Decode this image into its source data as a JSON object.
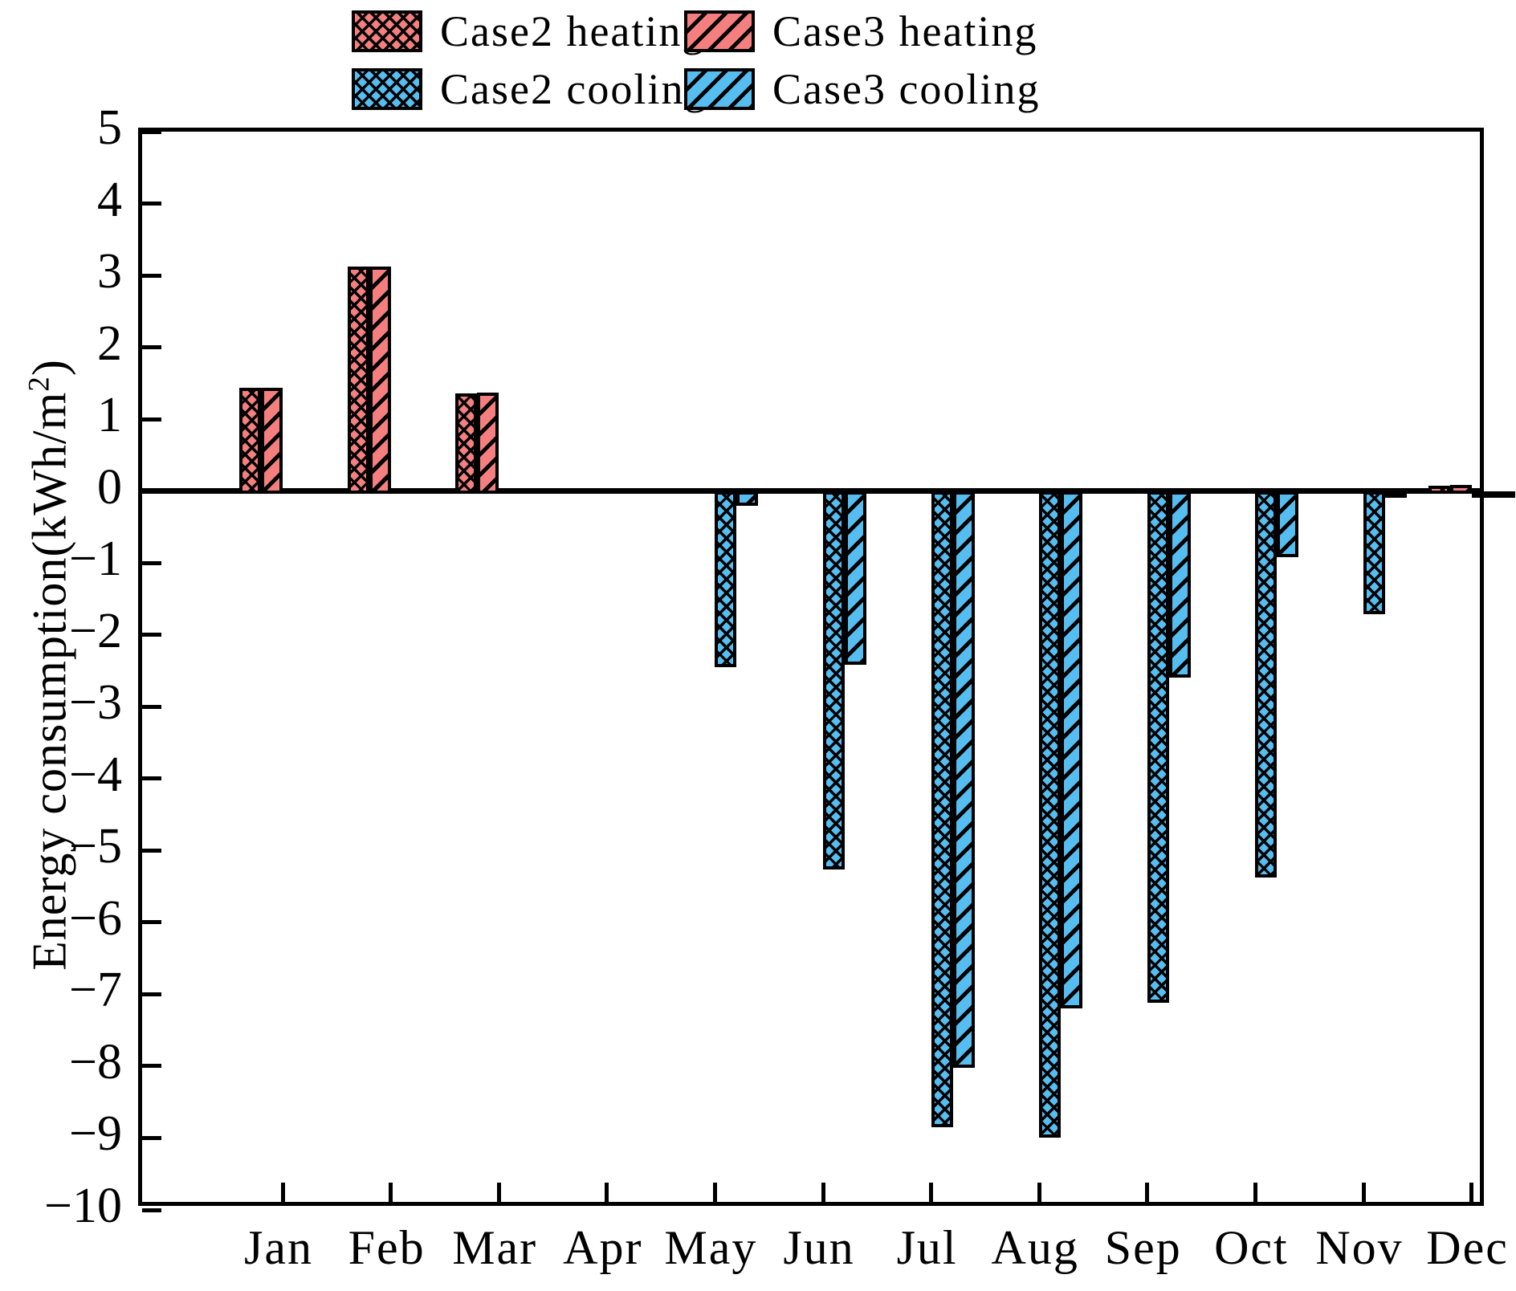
{
  "figure": {
    "background": "#ffffff",
    "axis_color": "#000000",
    "ylabel_prefix": "Energy consumption(kWh/m",
    "ylabel_sup": "2",
    "ylabel_suffix": ")"
  },
  "legend": {
    "position": "top-center",
    "items": [
      {
        "label": "Case2 heating",
        "color": "#F57F7F",
        "hatch": "cross"
      },
      {
        "label": "Case3 heating",
        "color": "#F57F7F",
        "hatch": "diag"
      },
      {
        "label": "Case2 cooling",
        "color": "#56BDF0",
        "hatch": "cross"
      },
      {
        "label": "Case3 cooling",
        "color": "#56BDF0",
        "hatch": "diag"
      }
    ]
  },
  "axes": {
    "y_tick_labels": [
      "5",
      "4",
      "3",
      "2",
      "1",
      "0",
      "−1",
      "−2",
      "−3",
      "−4",
      "−5",
      "−6",
      "−7",
      "−8",
      "−9",
      "−10"
    ],
    "y_tick_values": [
      5,
      4,
      3,
      2,
      1,
      0,
      -1,
      -2,
      -3,
      -4,
      -5,
      -6,
      -7,
      -8,
      -9,
      -10
    ],
    "x_tick_labels": [
      "Jan",
      "Feb",
      "Mar",
      "Apr",
      "May",
      "Jun",
      "Jul",
      "Aug",
      "Sep",
      "Oct",
      "Nov",
      "Dec"
    ]
  },
  "chart_data": {
    "type": "bar",
    "title": "",
    "xlabel": "",
    "ylabel": "Energy consumption(kWh/m²)",
    "ylim": [
      -10,
      5
    ],
    "grid": false,
    "legend_position": "top-center",
    "categories": [
      "Jan",
      "Feb",
      "Mar",
      "Apr",
      "May",
      "Jun",
      "Jul",
      "Aug",
      "Sep",
      "Oct",
      "Nov",
      "Dec"
    ],
    "series": [
      {
        "name": "Case2 heating",
        "color": "#F57F7F",
        "hatch": "cross",
        "values": [
          1.44,
          3.12,
          1.36,
          0,
          0,
          0,
          0,
          0,
          0,
          0,
          0,
          0.07
        ]
      },
      {
        "name": "Case3 heating",
        "color": "#F57F7F",
        "hatch": "diag",
        "values": [
          1.44,
          3.12,
          1.37,
          0,
          0,
          0,
          0,
          0,
          0,
          0,
          0,
          0.09
        ]
      },
      {
        "name": "Case2 cooling",
        "color": "#56BDF0",
        "hatch": "cross",
        "values": [
          0,
          0,
          0,
          0,
          -2.45,
          -5.27,
          -8.85,
          -9.0,
          -7.12,
          -5.38,
          -1.71,
          -0.04
        ]
      },
      {
        "name": "Case3 cooling",
        "color": "#56BDF0",
        "hatch": "diag",
        "values": [
          0,
          0,
          0,
          0,
          -0.2,
          -2.42,
          -8.02,
          -7.2,
          -2.59,
          -0.92,
          -0.06,
          -0.04
        ]
      }
    ]
  }
}
